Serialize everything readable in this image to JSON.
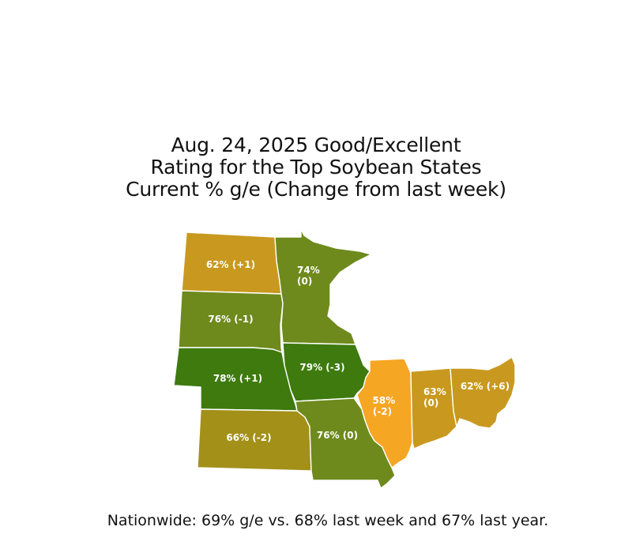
{
  "title": {
    "line1": "Aug. 24, 2025 Good/Excellent",
    "line2": "Rating for the Top Soybean States",
    "line3": "Current % g/e (Change from last week)"
  },
  "states": [
    {
      "id": "north-dakota",
      "value": 62,
      "change": 1,
      "label_lines": [
        "62% (+1)"
      ],
      "color": "#C9991F"
    },
    {
      "id": "south-dakota",
      "value": 76,
      "change": -1,
      "label_lines": [
        "76% (-1)"
      ],
      "color": "#6E8A1C"
    },
    {
      "id": "minnesota",
      "value": 74,
      "change": 0,
      "label_lines": [
        "74%",
        "(0)"
      ],
      "color": "#6E8A1C"
    },
    {
      "id": "nebraska",
      "value": 78,
      "change": 1,
      "label_lines": [
        "78% (+1)"
      ],
      "color": "#3E7A0E"
    },
    {
      "id": "iowa",
      "value": 79,
      "change": -3,
      "label_lines": [
        "79% (-3)"
      ],
      "color": "#3E7A0E"
    },
    {
      "id": "kansas",
      "value": 66,
      "change": -2,
      "label_lines": [
        "66% (-2)"
      ],
      "color": "#A39019"
    },
    {
      "id": "missouri",
      "value": 76,
      "change": 0,
      "label_lines": [
        "76% (0)"
      ],
      "color": "#6E8A1C"
    },
    {
      "id": "illinois",
      "value": 58,
      "change": -2,
      "label_lines": [
        "58%",
        "(-2)"
      ],
      "color": "#F5A623"
    },
    {
      "id": "indiana",
      "value": 63,
      "change": 0,
      "label_lines": [
        "63%",
        "(0)"
      ],
      "color": "#C9991F"
    },
    {
      "id": "ohio",
      "value": 62,
      "change": 6,
      "label_lines": [
        "62% (+6)"
      ],
      "color": "#C9991F"
    }
  ],
  "footer": "Nationwide: 69% g/e vs. 68% last week and 67% last year."
}
